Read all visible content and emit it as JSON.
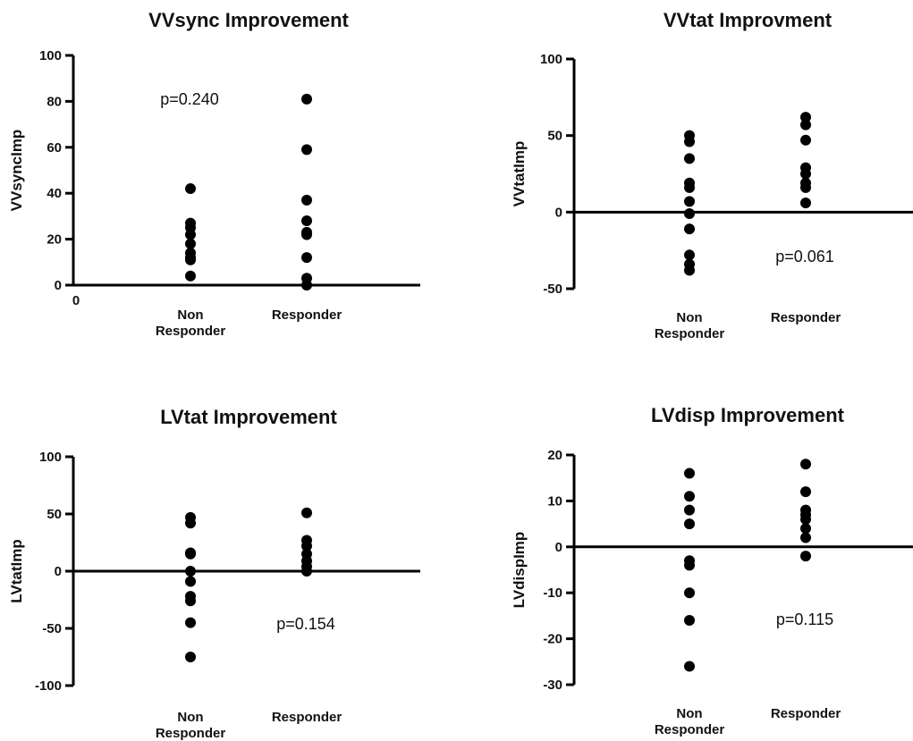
{
  "chart_data": [
    {
      "type": "scatter",
      "title": "VVsync Improvement",
      "ylabel": "VVsyncImp",
      "xlabel": "",
      "categories": [
        "Non\nResponder",
        "Responder"
      ],
      "ylim": [
        0,
        100
      ],
      "yticks": [
        0,
        20,
        40,
        60,
        80,
        100
      ],
      "x_origin_label": "0",
      "baseline": 0,
      "annotation": "p=0.240",
      "series": [
        {
          "values": [
            42,
            27,
            25,
            22,
            18,
            14,
            12,
            11,
            4
          ]
        },
        {
          "values": [
            81,
            59,
            37,
            28,
            23,
            22,
            12,
            3,
            0
          ]
        }
      ]
    },
    {
      "type": "scatter",
      "title": "VVtat Improvment",
      "ylabel": "VVtatImp",
      "xlabel": "",
      "categories": [
        "Non\nResponder",
        "Responder"
      ],
      "ylim": [
        -50,
        100
      ],
      "yticks": [
        -50,
        0,
        50,
        100
      ],
      "baseline": 0,
      "annotation": "p=0.061",
      "series": [
        {
          "values": [
            50,
            46,
            35,
            19,
            16,
            7,
            -1,
            -11,
            -28,
            -34,
            -38
          ]
        },
        {
          "values": [
            62,
            57,
            47,
            29,
            25,
            19,
            16,
            6
          ]
        }
      ]
    },
    {
      "type": "scatter",
      "title": "LVtat Improvement",
      "ylabel": "LVtatImp",
      "xlabel": "",
      "categories": [
        "Non\nResponder",
        "Responder"
      ],
      "ylim": [
        -100,
        100
      ],
      "yticks": [
        -100,
        -50,
        0,
        50,
        100
      ],
      "baseline": 0,
      "annotation": "p=0.154",
      "series": [
        {
          "values": [
            47,
            42,
            16,
            15,
            0,
            -9,
            -22,
            -26,
            -45,
            -75
          ]
        },
        {
          "values": [
            51,
            27,
            22,
            15,
            9,
            4,
            0
          ]
        }
      ]
    },
    {
      "type": "scatter",
      "title": "LVdisp Improvement",
      "ylabel": "LVdispImp",
      "xlabel": "",
      "categories": [
        "Non\nResponder",
        "Responder"
      ],
      "ylim": [
        -30,
        20
      ],
      "yticks": [
        -30,
        -20,
        -10,
        0,
        10,
        20
      ],
      "baseline": 0,
      "annotation": "p=0.115",
      "series": [
        {
          "values": [
            16,
            11,
            8,
            5,
            -3,
            -4,
            -10,
            -16,
            -26
          ]
        },
        {
          "values": [
            18,
            12,
            8,
            7,
            6,
            4,
            2,
            -2
          ]
        }
      ]
    }
  ]
}
